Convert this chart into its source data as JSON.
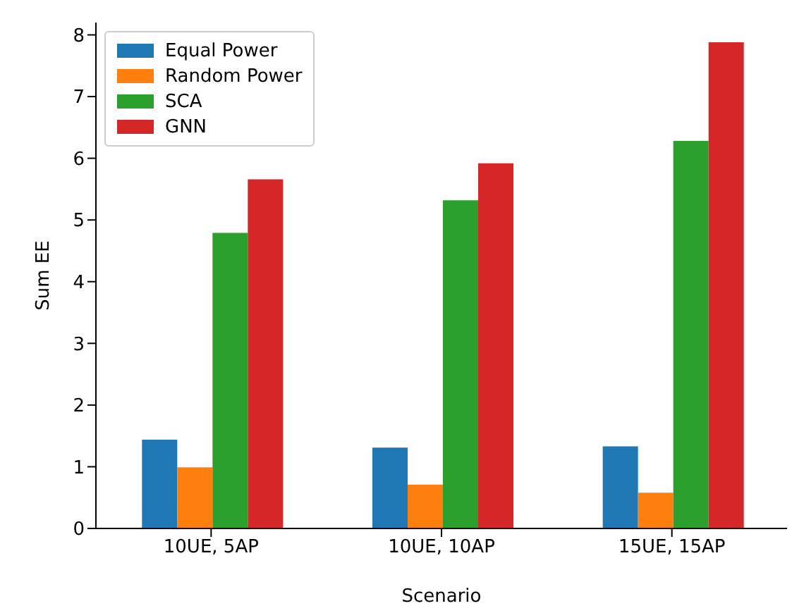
{
  "chart_data": {
    "type": "bar",
    "xlabel": "Scenario",
    "ylabel": "Sum EE",
    "categories": [
      "10UE, 5AP",
      "10UE, 10AP",
      "15UE, 15AP"
    ],
    "series": [
      {
        "name": "Equal Power",
        "color": "#1f77b4",
        "values": [
          1.44,
          1.31,
          1.33
        ]
      },
      {
        "name": "Random Power",
        "color": "#ff7f0e",
        "values": [
          0.99,
          0.71,
          0.58
        ]
      },
      {
        "name": "SCA",
        "color": "#2ca02c",
        "values": [
          4.79,
          5.32,
          6.28
        ]
      },
      {
        "name": "GNN",
        "color": "#d62728",
        "values": [
          5.66,
          5.92,
          7.88
        ]
      }
    ],
    "ylim": [
      0,
      8.2
    ],
    "yticks": [
      0,
      1,
      2,
      3,
      4,
      5,
      6,
      7,
      8
    ],
    "grid": false,
    "legend": "top left"
  }
}
